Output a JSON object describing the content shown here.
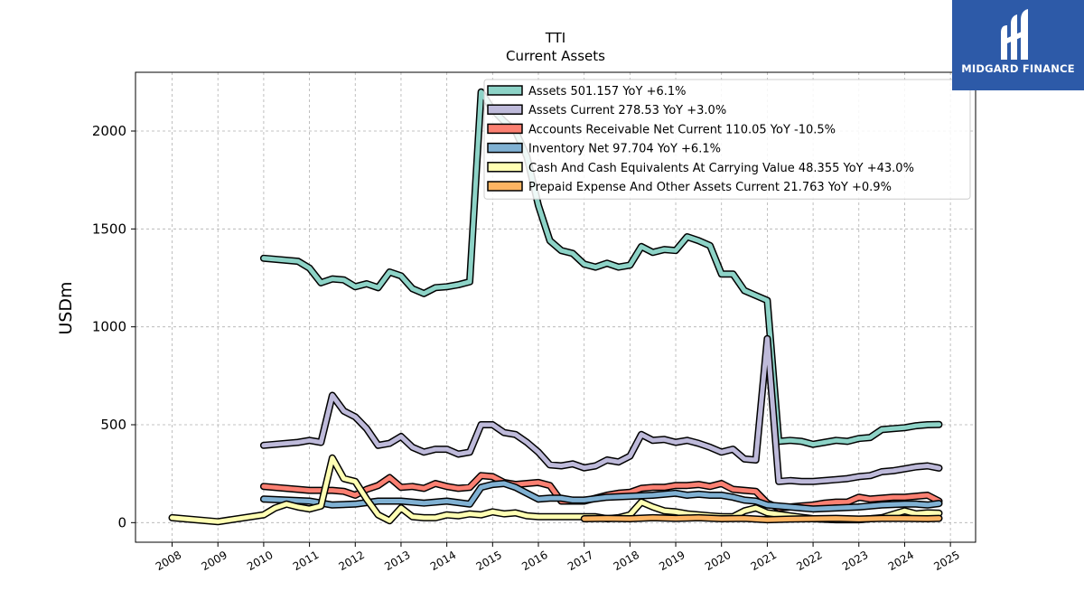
{
  "brand": {
    "name": "MIDGARD FINANCE",
    "color": "#2d5aa8"
  },
  "chart_data": {
    "type": "line",
    "title": "TTI",
    "subtitle": "Current  Assets",
    "ylabel": "USDm",
    "xlim": [
      2007.2,
      2025.55
    ],
    "ylim": [
      -100,
      2300
    ],
    "yticks": [
      0,
      500,
      1000,
      1500,
      2000
    ],
    "xticks": [
      2008,
      2009,
      2010,
      2011,
      2012,
      2013,
      2014,
      2015,
      2016,
      2017,
      2018,
      2019,
      2020,
      2021,
      2022,
      2023,
      2024,
      2025
    ],
    "grid": true,
    "legend_position": "top-right",
    "series": [
      {
        "name": "Assets  501.157 YoY +6.1%",
        "color": "#8dd3c7",
        "x": [
          2010.0,
          2010.75,
          2011.0,
          2011.25,
          2011.5,
          2011.75,
          2012.0,
          2012.25,
          2012.5,
          2012.75,
          2013.0,
          2013.25,
          2013.5,
          2013.75,
          2014.0,
          2014.25,
          2014.5,
          2014.75,
          2015.0,
          2015.25,
          2015.5,
          2015.75,
          2016.0,
          2016.25,
          2016.5,
          2016.75,
          2017.0,
          2017.25,
          2017.5,
          2017.75,
          2018.0,
          2018.25,
          2018.5,
          2018.75,
          2019.0,
          2019.25,
          2019.5,
          2019.75,
          2020.0,
          2020.25,
          2020.5,
          2020.75,
          2021.0,
          2021.25,
          2021.5,
          2021.75,
          2022.0,
          2022.25,
          2022.5,
          2022.75,
          2023.0,
          2023.25,
          2023.5,
          2023.75,
          2024.0,
          2024.25,
          2024.5,
          2024.75
        ],
        "values": [
          1350,
          1335,
          1300,
          1225,
          1245,
          1240,
          1205,
          1220,
          1200,
          1280,
          1260,
          1195,
          1170,
          1200,
          1205,
          1215,
          1230,
          2200,
          2110,
          2050,
          2000,
          1870,
          1620,
          1440,
          1390,
          1375,
          1320,
          1305,
          1325,
          1305,
          1315,
          1410,
          1380,
          1395,
          1390,
          1460,
          1440,
          1415,
          1270,
          1270,
          1185,
          1160,
          1135,
          415,
          420,
          415,
          400,
          410,
          420,
          415,
          430,
          435,
          475,
          480,
          485,
          495,
          500,
          501
        ]
      },
      {
        "name": "Assets Current  278.53 YoY +3.0%",
        "color": "#bebada",
        "x": [
          2010.0,
          2010.75,
          2011.0,
          2011.25,
          2011.5,
          2011.75,
          2012.0,
          2012.25,
          2012.5,
          2012.75,
          2013.0,
          2013.25,
          2013.5,
          2013.75,
          2014.0,
          2014.25,
          2014.5,
          2014.75,
          2015.0,
          2015.25,
          2015.5,
          2015.75,
          2016.0,
          2016.25,
          2016.5,
          2016.75,
          2017.0,
          2017.25,
          2017.5,
          2017.75,
          2018.0,
          2018.25,
          2018.5,
          2018.75,
          2019.0,
          2019.25,
          2019.5,
          2019.75,
          2020.0,
          2020.25,
          2020.5,
          2020.75,
          2021.0,
          2021.25,
          2021.5,
          2021.75,
          2022.0,
          2022.25,
          2022.5,
          2022.75,
          2023.0,
          2023.25,
          2023.5,
          2023.75,
          2024.0,
          2024.25,
          2024.5,
          2024.75
        ],
        "values": [
          395,
          410,
          420,
          410,
          650,
          570,
          540,
          480,
          395,
          405,
          440,
          385,
          360,
          375,
          375,
          350,
          360,
          500,
          500,
          460,
          450,
          410,
          360,
          295,
          290,
          300,
          280,
          290,
          320,
          310,
          340,
          450,
          420,
          425,
          410,
          420,
          405,
          385,
          360,
          375,
          325,
          320,
          940,
          210,
          215,
          210,
          210,
          215,
          220,
          225,
          235,
          240,
          260,
          265,
          275,
          285,
          290,
          279
        ]
      },
      {
        "name": "Accounts Receivable Net Current  110.05 YoY -10.5%",
        "color": "#fb8072",
        "x": [
          2010.0,
          2011.0,
          2011.5,
          2011.75,
          2012.0,
          2012.25,
          2012.5,
          2012.75,
          2013.0,
          2013.25,
          2013.5,
          2013.75,
          2014.0,
          2014.25,
          2014.5,
          2014.75,
          2015.0,
          2015.25,
          2015.5,
          2015.75,
          2016.0,
          2016.25,
          2016.5,
          2016.75,
          2017.0,
          2017.25,
          2017.5,
          2017.75,
          2018.0,
          2018.25,
          2018.5,
          2018.75,
          2019.0,
          2019.25,
          2019.5,
          2019.75,
          2020.0,
          2020.25,
          2020.5,
          2020.75,
          2021.0,
          2021.25,
          2021.5,
          2021.75,
          2022.0,
          2022.25,
          2022.5,
          2022.75,
          2023.0,
          2023.25,
          2023.5,
          2023.75,
          2024.0,
          2024.25,
          2024.5,
          2024.75
        ],
        "values": [
          185,
          165,
          165,
          160,
          140,
          170,
          190,
          230,
          180,
          185,
          175,
          200,
          185,
          175,
          180,
          240,
          235,
          205,
          195,
          200,
          205,
          190,
          110,
          110,
          110,
          125,
          140,
          150,
          155,
          175,
          180,
          180,
          190,
          190,
          195,
          185,
          200,
          170,
          165,
          160,
          100,
          75,
          80,
          85,
          90,
          100,
          105,
          105,
          130,
          120,
          125,
          130,
          130,
          135,
          140,
          110
        ]
      },
      {
        "name": "Inventory Net  97.704 YoY +6.1%",
        "color": "#80b1d3",
        "x": [
          2010.0,
          2011.0,
          2011.5,
          2012.0,
          2012.5,
          2013.0,
          2013.5,
          2014.0,
          2014.5,
          2014.75,
          2015.0,
          2015.25,
          2015.5,
          2015.75,
          2016.0,
          2016.25,
          2016.5,
          2016.75,
          2017.0,
          2017.5,
          2018.0,
          2018.5,
          2019.0,
          2019.25,
          2019.5,
          2019.75,
          2020.0,
          2020.25,
          2020.5,
          2020.75,
          2021.0,
          2021.5,
          2022.0,
          2022.5,
          2023.0,
          2023.5,
          2024.0,
          2024.25,
          2024.5,
          2024.75
        ],
        "values": [
          120,
          110,
          90,
          95,
          110,
          110,
          100,
          110,
          95,
          180,
          195,
          200,
          180,
          150,
          120,
          125,
          125,
          115,
          115,
          130,
          135,
          140,
          150,
          140,
          145,
          140,
          140,
          130,
          115,
          110,
          90,
          80,
          70,
          75,
          80,
          90,
          95,
          95,
          90,
          98
        ]
      },
      {
        "name": "Cash And Cash Equivalents At Carrying Value  48.355 YoY +43.0%",
        "color": "#ffffb3",
        "x": [
          2008.0,
          2009.0,
          2010.0,
          2010.25,
          2010.5,
          2010.75,
          2011.0,
          2011.25,
          2011.5,
          2011.75,
          2012.0,
          2012.25,
          2012.5,
          2012.75,
          2013.0,
          2013.25,
          2013.5,
          2013.75,
          2014.0,
          2014.25,
          2014.5,
          2014.75,
          2015.0,
          2015.25,
          2015.5,
          2015.75,
          2016.0,
          2016.5,
          2017.0,
          2017.25,
          2017.5,
          2017.75,
          2018.0,
          2018.25,
          2018.5,
          2018.75,
          2019.0,
          2019.25,
          2019.5,
          2019.75,
          2020.0,
          2020.25,
          2020.5,
          2020.75,
          2021.0,
          2021.5,
          2022.0,
          2022.5,
          2023.0,
          2023.5,
          2024.0,
          2024.25,
          2024.5,
          2024.75
        ],
        "values": [
          25,
          5,
          40,
          75,
          95,
          80,
          70,
          85,
          330,
          225,
          210,
          120,
          40,
          10,
          75,
          30,
          25,
          25,
          40,
          35,
          45,
          40,
          55,
          45,
          50,
          35,
          30,
          30,
          30,
          30,
          20,
          25,
          40,
          105,
          80,
          60,
          55,
          45,
          40,
          35,
          30,
          30,
          60,
          75,
          50,
          35,
          20,
          15,
          15,
          25,
          60,
          45,
          50,
          48
        ]
      },
      {
        "name": "Prepaid Expense And Other Assets Current  21.763 YoY +0.9%",
        "color": "#fdb462",
        "x": [
          2017.0,
          2017.5,
          2018.0,
          2018.5,
          2019.0,
          2019.5,
          2020.0,
          2020.5,
          2021.0,
          2021.5,
          2022.0,
          2022.5,
          2023.0,
          2023.5,
          2024.0,
          2024.5,
          2024.75
        ],
        "values": [
          20,
          22,
          20,
          25,
          22,
          25,
          20,
          22,
          15,
          18,
          20,
          22,
          18,
          22,
          22,
          20,
          22
        ]
      }
    ]
  }
}
